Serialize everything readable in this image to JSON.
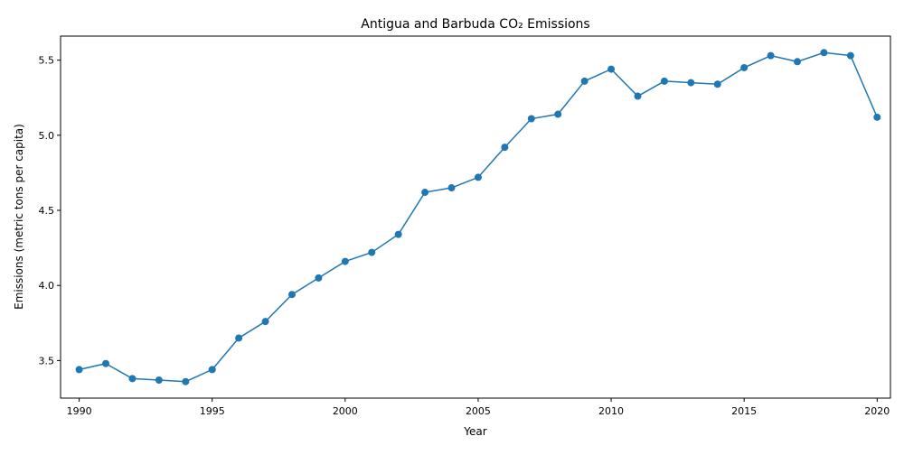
{
  "chart_data": {
    "type": "line",
    "title": "Antigua and Barbuda CO₂ Emissions",
    "xlabel": "Year",
    "ylabel": "Emissions (metric tons per capita)",
    "xlim": [
      1989.3,
      2020.5
    ],
    "ylim": [
      3.25,
      5.66
    ],
    "x_ticks": [
      1990,
      1995,
      2000,
      2005,
      2010,
      2015,
      2020
    ],
    "y_ticks": [
      3.5,
      4.0,
      4.5,
      5.0,
      5.5
    ],
    "y_tick_labels": [
      "3.5",
      "4.0",
      "4.5",
      "5.0",
      "5.5"
    ],
    "grid": false,
    "legend": "none",
    "series": [
      {
        "color": "#1f77b4",
        "marker": "circle",
        "x": [
          1990,
          1991,
          1992,
          1993,
          1994,
          1995,
          1996,
          1997,
          1998,
          1999,
          2000,
          2001,
          2002,
          2003,
          2004,
          2005,
          2006,
          2007,
          2008,
          2009,
          2010,
          2011,
          2012,
          2013,
          2014,
          2015,
          2016,
          2017,
          2018,
          2019,
          2020
        ],
        "y": [
          3.44,
          3.48,
          3.38,
          3.37,
          3.36,
          3.44,
          3.65,
          3.76,
          3.94,
          4.05,
          4.16,
          4.22,
          4.34,
          4.62,
          4.65,
          4.72,
          4.92,
          5.11,
          5.14,
          5.36,
          5.44,
          5.26,
          5.36,
          5.35,
          5.34,
          5.45,
          5.53,
          5.49,
          5.55,
          5.53,
          5.12
        ]
      }
    ]
  }
}
